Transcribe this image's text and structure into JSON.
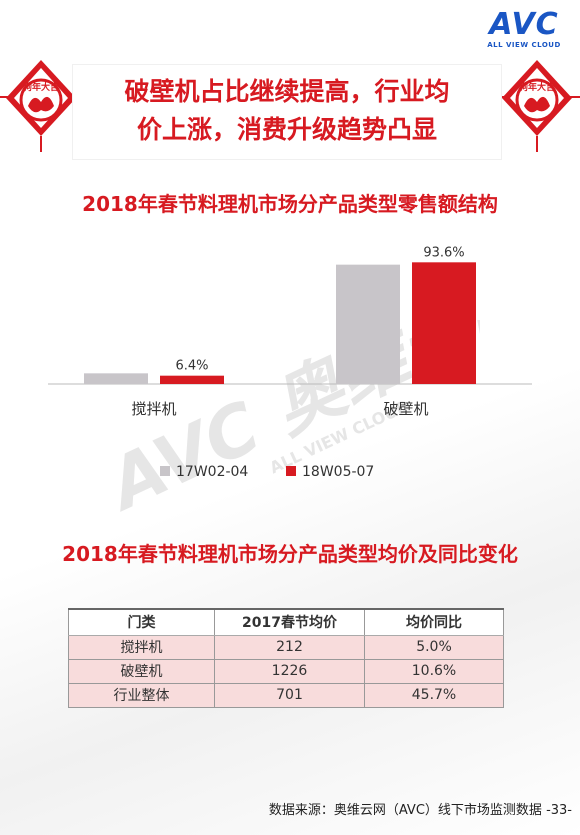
{
  "logo": {
    "mark": "AVC",
    "subtitle": "ALL VIEW CLOUD"
  },
  "banner": {
    "title": "破壁机占比继续提高，行业均\n价上涨，消费升级趋势凸显",
    "ornament_text": "狗年大吉",
    "color": "#d71a21"
  },
  "chart_data": {
    "type": "bar",
    "title": "2018年春节料理机市场分产品类型零售额结构",
    "categories": [
      "搅拌机",
      "破壁机"
    ],
    "series": [
      {
        "name": "17W02-04",
        "values": [
          8.2,
          91.8
        ],
        "color": "#c8c5c9"
      },
      {
        "name": "18W05-07",
        "values": [
          6.4,
          93.6
        ],
        "color": "#d71a21"
      }
    ],
    "data_labels": [
      "6.4%",
      "93.6%"
    ],
    "ylim": [
      0,
      100
    ],
    "legend_position": "bottom",
    "grid": false
  },
  "table": {
    "title": "2018年春节料理机市场分产品类型均价及同比变化",
    "headers": [
      "门类",
      "2017春节均价",
      "均价同比"
    ],
    "rows": [
      [
        "搅拌机",
        "212",
        "5.0%"
      ],
      [
        "破壁机",
        "1226",
        "10.6%"
      ],
      [
        "行业整体",
        "701",
        "45.7%"
      ]
    ]
  },
  "watermark": {
    "text": "AVC 奥维云网",
    "sub": "ALL VIEW CLOUD"
  },
  "footer": {
    "source": "数据来源：奥维云网（AVC）线下市场监测数据",
    "page": "-33-"
  }
}
